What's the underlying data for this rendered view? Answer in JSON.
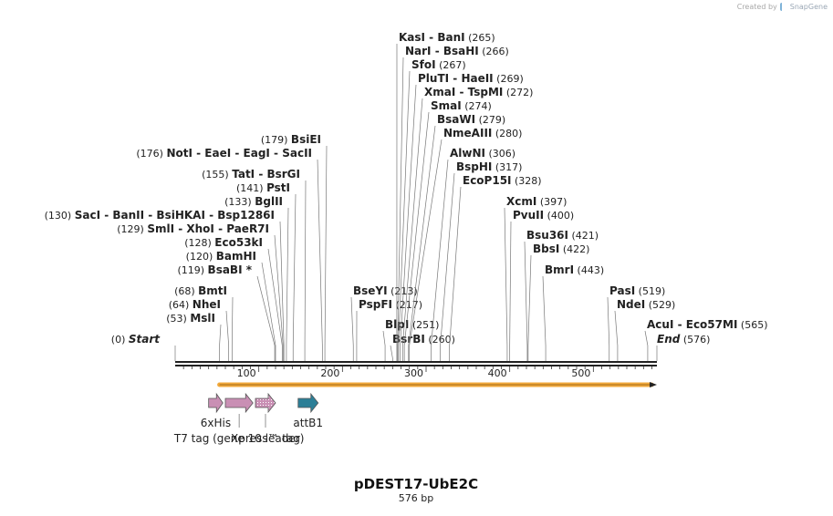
{
  "credit": {
    "created_by": "Created by",
    "brand": "SnapGene"
  },
  "map": {
    "name": "pDEST17-UbE2C",
    "length_label": "576 bp",
    "length": 576,
    "ruler_ticks": [
      100,
      200,
      300,
      400,
      500
    ],
    "arrow_color": "#f2a93b",
    "feature_colors": {
      "pink": "#c98fb4",
      "teal": "#2c7f97"
    }
  },
  "sites": [
    {
      "pos": 0,
      "name": "Start",
      "num": "(0)",
      "style": "italic",
      "side": "left"
    },
    {
      "pos": 53,
      "name": "MslI",
      "num": "(53)",
      "side": "left"
    },
    {
      "pos": 64,
      "name": "NheI",
      "num": "(64)",
      "side": "left"
    },
    {
      "pos": 68,
      "name": "BmtI",
      "num": "(68)",
      "side": "left"
    },
    {
      "pos": 119,
      "name": "BsaBI *",
      "num": "(119)",
      "side": "left"
    },
    {
      "pos": 120,
      "name": "BamHI",
      "num": "(120)",
      "side": "left"
    },
    {
      "pos": 128,
      "name": "Eco53kI",
      "num": "(128)",
      "side": "left"
    },
    {
      "pos": 129,
      "name": "SmlI  -  XhoI  -  PaeR7I",
      "num": "(129)",
      "side": "left"
    },
    {
      "pos": 130,
      "name": "SacI  -  BanII  -  BsiHKAI  -  Bsp1286I",
      "num": "(130)",
      "side": "left"
    },
    {
      "pos": 133,
      "name": "BglII",
      "num": "(133)",
      "side": "left"
    },
    {
      "pos": 141,
      "name": "PstI",
      "num": "(141)",
      "side": "left"
    },
    {
      "pos": 155,
      "name": "TatI  -  BsrGI",
      "num": "(155)",
      "side": "left"
    },
    {
      "pos": 176,
      "name": "NotI  -  EaeI  -  EagI  -  SacII",
      "num": "(176)",
      "side": "left"
    },
    {
      "pos": 179,
      "name": "BsiEI",
      "num": "(179)",
      "side": "left"
    },
    {
      "pos": 213,
      "name": "BseYI",
      "num": "(213)",
      "side": "right"
    },
    {
      "pos": 217,
      "name": "PspFI",
      "num": "(217)",
      "side": "right"
    },
    {
      "pos": 251,
      "name": "BlpI",
      "num": "(251)",
      "side": "right"
    },
    {
      "pos": 260,
      "name": "BsrBI",
      "num": "(260)",
      "side": "right"
    },
    {
      "pos": 265,
      "name": "KasI  -  BanI",
      "num": "(265)",
      "side": "right"
    },
    {
      "pos": 266,
      "name": "NarI  -  BsaHI",
      "num": "(266)",
      "side": "right"
    },
    {
      "pos": 267,
      "name": "SfoI",
      "num": "(267)",
      "side": "right"
    },
    {
      "pos": 269,
      "name": "PluTI  -  HaeII",
      "num": "(269)",
      "side": "right"
    },
    {
      "pos": 272,
      "name": "XmaI  -  TspMI",
      "num": "(272)",
      "side": "right"
    },
    {
      "pos": 274,
      "name": "SmaI",
      "num": "(274)",
      "side": "right"
    },
    {
      "pos": 279,
      "name": "BsaWI",
      "num": "(279)",
      "side": "right"
    },
    {
      "pos": 280,
      "name": "NmeAIII",
      "num": "(280)",
      "side": "right"
    },
    {
      "pos": 306,
      "name": "AlwNI",
      "num": "(306)",
      "side": "right"
    },
    {
      "pos": 317,
      "name": "BspHI",
      "num": "(317)",
      "side": "right"
    },
    {
      "pos": 328,
      "name": "EcoP15I",
      "num": "(328)",
      "side": "right"
    },
    {
      "pos": 397,
      "name": "XcmI",
      "num": "(397)",
      "side": "right"
    },
    {
      "pos": 400,
      "name": "PvuII",
      "num": "(400)",
      "side": "right"
    },
    {
      "pos": 421,
      "name": "Bsu36I",
      "num": "(421)",
      "side": "right"
    },
    {
      "pos": 422,
      "name": "BbsI",
      "num": "(422)",
      "side": "right"
    },
    {
      "pos": 443,
      "name": "BmrI",
      "num": "(443)",
      "side": "right"
    },
    {
      "pos": 519,
      "name": "PasI",
      "num": "(519)",
      "side": "right"
    },
    {
      "pos": 529,
      "name": "NdeI",
      "num": "(529)",
      "side": "right"
    },
    {
      "pos": 565,
      "name": "AcuI  -  Eco57MI",
      "num": "(565)",
      "side": "right"
    },
    {
      "pos": 576,
      "name": "End",
      "num": "(576)",
      "style": "italic",
      "side": "right"
    }
  ],
  "features": [
    {
      "name": "6xHis",
      "start": 40,
      "end": 57,
      "color": "pink",
      "pattern": "solid"
    },
    {
      "name": "T7 tag (gene 10 leader)",
      "start": 60,
      "end": 93,
      "color": "pink",
      "pattern": "solid"
    },
    {
      "name": "Xpress™ tag",
      "start": 96,
      "end": 120,
      "color": "pink",
      "pattern": "dotted"
    },
    {
      "name": "attB1",
      "start": 147,
      "end": 171,
      "color": "teal",
      "pattern": "solid"
    }
  ]
}
